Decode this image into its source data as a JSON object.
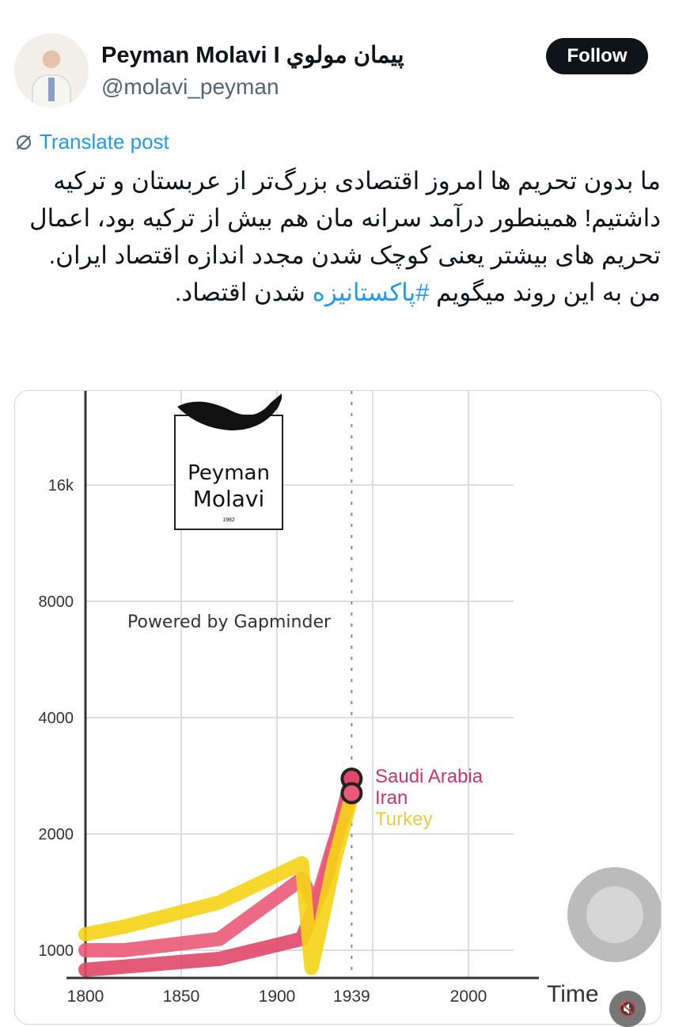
{
  "author": {
    "name": "Peyman Molavi I پیمان مولوي",
    "handle": "@molavi_peyman"
  },
  "follow_label": "Follow",
  "translate_label": "Translate post",
  "post": {
    "text_before": "ما بدون تحریم ها امروز اقتصادی بزرگ‌تر از عربستان و ترکیه داشتیم! همینطور درآمد سرانه مان هم بیش از ترکیه بود، اعمال تحریم های بیشتر یعنی کوچک شدن مجدد اندازه اقتصاد ایران. من به این روند میگویم ",
    "hashtag": "#پاکستانیزه",
    "text_after": " شدن اقتصاد."
  },
  "logo": {
    "line1": "Peyman",
    "line2": "Molavi",
    "year": "1982"
  },
  "powered_by": "Powered by Gapminder",
  "chart_data": {
    "type": "line",
    "xlabel": "Time",
    "y_scale": "log",
    "ylim": [
      700,
      22000
    ],
    "xlim": [
      1790,
      2030
    ],
    "y_ticks": [
      {
        "v": 1000,
        "label": "1000"
      },
      {
        "v": 2000,
        "label": "2000"
      },
      {
        "v": 4000,
        "label": "4000"
      },
      {
        "v": 8000,
        "label": "8000"
      },
      {
        "v": 16000,
        "label": "16k"
      }
    ],
    "x_ticks": [
      {
        "v": 1800,
        "label": "1800"
      },
      {
        "v": 1850,
        "label": "1850"
      },
      {
        "v": 1900,
        "label": "1900"
      },
      {
        "v": 1939,
        "label": "1939"
      },
      {
        "v": 2000,
        "label": "2000"
      }
    ],
    "current_year": 1939,
    "series": [
      {
        "name": "Turkey",
        "color": "#f5d416",
        "x": [
          1800,
          1820,
          1870,
          1913,
          1918,
          1922,
          1930,
          1939
        ],
        "y": [
          1100,
          1150,
          1330,
          1680,
          900,
          1100,
          1700,
          2500
        ]
      },
      {
        "name": "Iran",
        "color": "#ea5a78",
        "x": [
          1800,
          1820,
          1870,
          1913,
          1920,
          1930,
          1939
        ],
        "y": [
          1000,
          1000,
          1070,
          1530,
          1300,
          1900,
          2550
        ]
      },
      {
        "name": "Saudi Arabia",
        "color": "#e0486a",
        "x": [
          1800,
          1870,
          1913,
          1925,
          1939
        ],
        "y": [
          890,
          950,
          1070,
          1500,
          2780
        ]
      }
    ],
    "labels": [
      {
        "text": "Saudi Arabia",
        "color": "#c9356a"
      },
      {
        "text": "Iran",
        "color": "#c9356a"
      },
      {
        "text": "Turkey",
        "color": "#f0c940"
      }
    ]
  }
}
